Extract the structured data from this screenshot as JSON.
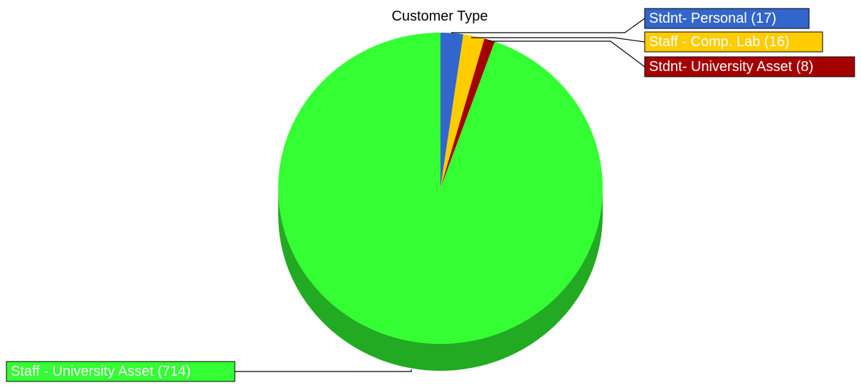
{
  "chart_data": {
    "type": "pie",
    "title": "Customer Type",
    "style": "3d",
    "legend_placement": "callout labels around the pie",
    "slices": [
      {
        "label": "Stdnt- Personal (17)",
        "value": 17,
        "color": "#3366cc",
        "side_color": "#2a52a3",
        "label_text_color": "#ffffff"
      },
      {
        "label": "Staff - Comp. Lab (16)",
        "value": 16,
        "color": "#ffcc00",
        "side_color": "#cc9f00",
        "label_text_color": "#ffffff"
      },
      {
        "label": "Stdnt- University Asset (8)",
        "value": 8,
        "color": "#a50000",
        "side_color": "#7a0000",
        "label_text_color": "#ffffff"
      },
      {
        "label": "Staff - University Asset (714)",
        "value": 714,
        "color": "#33ff33",
        "side_color": "#22aa22",
        "label_text_color": "#ffffff"
      }
    ]
  }
}
